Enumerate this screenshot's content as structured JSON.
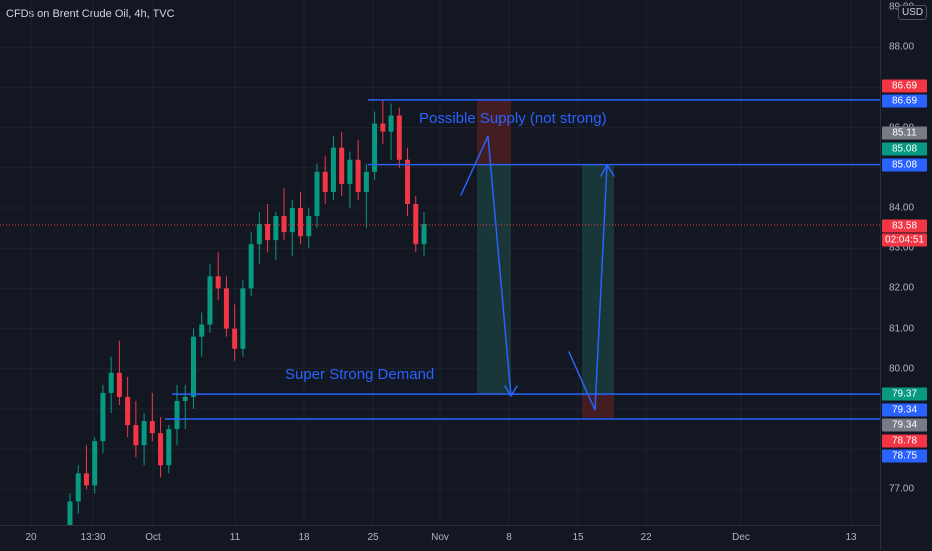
{
  "header": {
    "symbol_title": "CFDs on Brent Crude Oil, 4h, TVC",
    "currency": "USD"
  },
  "price_axis": {
    "ticks": [
      "89.00",
      "88.00",
      "86.00",
      "84.00",
      "83.00",
      "82.00",
      "81.00",
      "80.00",
      "77.00"
    ],
    "tags": [
      {
        "label": "86.69",
        "color": "#f23645"
      },
      {
        "label": "86.69",
        "color": "#2962ff"
      },
      {
        "label": "85.11",
        "color": "#787b86"
      },
      {
        "label": "85.08",
        "color": "#089981"
      },
      {
        "label": "85.08",
        "color": "#2962ff"
      },
      {
        "label": "83.58",
        "color": "#f23645"
      },
      {
        "label": "02:04:51",
        "color": "#f23645"
      },
      {
        "label": "79.37",
        "color": "#089981"
      },
      {
        "label": "79.34",
        "color": "#2962ff"
      },
      {
        "label": "79.34",
        "color": "#787b86"
      },
      {
        "label": "78.78",
        "color": "#f23645"
      },
      {
        "label": "78.75",
        "color": "#2962ff"
      }
    ]
  },
  "time_axis": {
    "labels": [
      "20",
      "13:30",
      "Oct",
      "11",
      "18",
      "25",
      "Nov",
      "8",
      "15",
      "22",
      "Dec",
      "13"
    ]
  },
  "annotations": {
    "supply_label": "Possible Supply (not strong)",
    "demand_label": "Super Strong Demand"
  },
  "colors": {
    "background": "#131722",
    "up_candle": "#089981",
    "down_candle": "#f23645",
    "drawing": "#2962ff",
    "long_zone": "#1b3b3b",
    "short_zone": "#4a1e22"
  },
  "chart_data": {
    "type": "candlestick",
    "interval": "4h",
    "ylim": [
      76.0,
      89.0
    ],
    "current_price": 83.58,
    "horizontal_levels": [
      86.69,
      85.08,
      79.37,
      78.75
    ],
    "candles": [
      {
        "o": 76.1,
        "h": 76.9,
        "l": 75.8,
        "c": 76.7
      },
      {
        "o": 76.7,
        "h": 77.6,
        "l": 76.4,
        "c": 77.4
      },
      {
        "o": 77.4,
        "h": 78.1,
        "l": 77.0,
        "c": 77.1
      },
      {
        "o": 77.1,
        "h": 78.3,
        "l": 76.9,
        "c": 78.2
      },
      {
        "o": 78.2,
        "h": 79.6,
        "l": 77.9,
        "c": 79.4
      },
      {
        "o": 79.4,
        "h": 80.3,
        "l": 78.9,
        "c": 79.9
      },
      {
        "o": 79.9,
        "h": 80.7,
        "l": 79.1,
        "c": 79.3
      },
      {
        "o": 79.3,
        "h": 79.8,
        "l": 78.3,
        "c": 78.6
      },
      {
        "o": 78.6,
        "h": 79.2,
        "l": 77.8,
        "c": 78.1
      },
      {
        "o": 78.1,
        "h": 78.9,
        "l": 77.6,
        "c": 78.7
      },
      {
        "o": 78.7,
        "h": 79.4,
        "l": 78.2,
        "c": 78.4
      },
      {
        "o": 78.4,
        "h": 78.8,
        "l": 77.3,
        "c": 77.6
      },
      {
        "o": 77.6,
        "h": 78.6,
        "l": 77.4,
        "c": 78.5
      },
      {
        "o": 78.5,
        "h": 79.6,
        "l": 78.1,
        "c": 79.2
      },
      {
        "o": 79.2,
        "h": 79.6,
        "l": 78.5,
        "c": 79.3
      },
      {
        "o": 79.3,
        "h": 81.0,
        "l": 79.0,
        "c": 80.8
      },
      {
        "o": 80.8,
        "h": 81.4,
        "l": 80.3,
        "c": 81.1
      },
      {
        "o": 81.1,
        "h": 82.6,
        "l": 80.9,
        "c": 82.3
      },
      {
        "o": 82.3,
        "h": 82.9,
        "l": 81.7,
        "c": 82.0
      },
      {
        "o": 82.0,
        "h": 82.3,
        "l": 80.8,
        "c": 81.0
      },
      {
        "o": 81.0,
        "h": 81.6,
        "l": 80.2,
        "c": 80.5
      },
      {
        "o": 80.5,
        "h": 82.2,
        "l": 80.3,
        "c": 82.0
      },
      {
        "o": 82.0,
        "h": 83.4,
        "l": 81.8,
        "c": 83.1
      },
      {
        "o": 83.1,
        "h": 83.9,
        "l": 82.6,
        "c": 83.6
      },
      {
        "o": 83.6,
        "h": 84.1,
        "l": 82.9,
        "c": 83.2
      },
      {
        "o": 83.2,
        "h": 83.9,
        "l": 82.7,
        "c": 83.8
      },
      {
        "o": 83.8,
        "h": 84.5,
        "l": 83.2,
        "c": 83.4
      },
      {
        "o": 83.4,
        "h": 84.2,
        "l": 82.8,
        "c": 84.0
      },
      {
        "o": 84.0,
        "h": 84.4,
        "l": 83.1,
        "c": 83.3
      },
      {
        "o": 83.3,
        "h": 84.0,
        "l": 83.0,
        "c": 83.8
      },
      {
        "o": 83.8,
        "h": 85.1,
        "l": 83.5,
        "c": 84.9
      },
      {
        "o": 84.9,
        "h": 85.3,
        "l": 84.1,
        "c": 84.4
      },
      {
        "o": 84.4,
        "h": 85.8,
        "l": 84.2,
        "c": 85.5
      },
      {
        "o": 85.5,
        "h": 85.9,
        "l": 84.3,
        "c": 84.6
      },
      {
        "o": 84.6,
        "h": 85.4,
        "l": 84.0,
        "c": 85.2
      },
      {
        "o": 85.2,
        "h": 85.7,
        "l": 84.2,
        "c": 84.4
      },
      {
        "o": 84.4,
        "h": 85.1,
        "l": 83.5,
        "c": 84.9
      },
      {
        "o": 84.9,
        "h": 86.4,
        "l": 84.7,
        "c": 86.1
      },
      {
        "o": 86.1,
        "h": 86.7,
        "l": 85.6,
        "c": 85.9
      },
      {
        "o": 85.9,
        "h": 86.6,
        "l": 85.2,
        "c": 86.3
      },
      {
        "o": 86.3,
        "h": 86.5,
        "l": 85.0,
        "c": 85.2
      },
      {
        "o": 85.2,
        "h": 85.5,
        "l": 83.8,
        "c": 84.1
      },
      {
        "o": 84.1,
        "h": 84.3,
        "l": 82.9,
        "c": 83.1
      },
      {
        "o": 83.1,
        "h": 83.9,
        "l": 82.8,
        "c": 83.6
      }
    ]
  }
}
